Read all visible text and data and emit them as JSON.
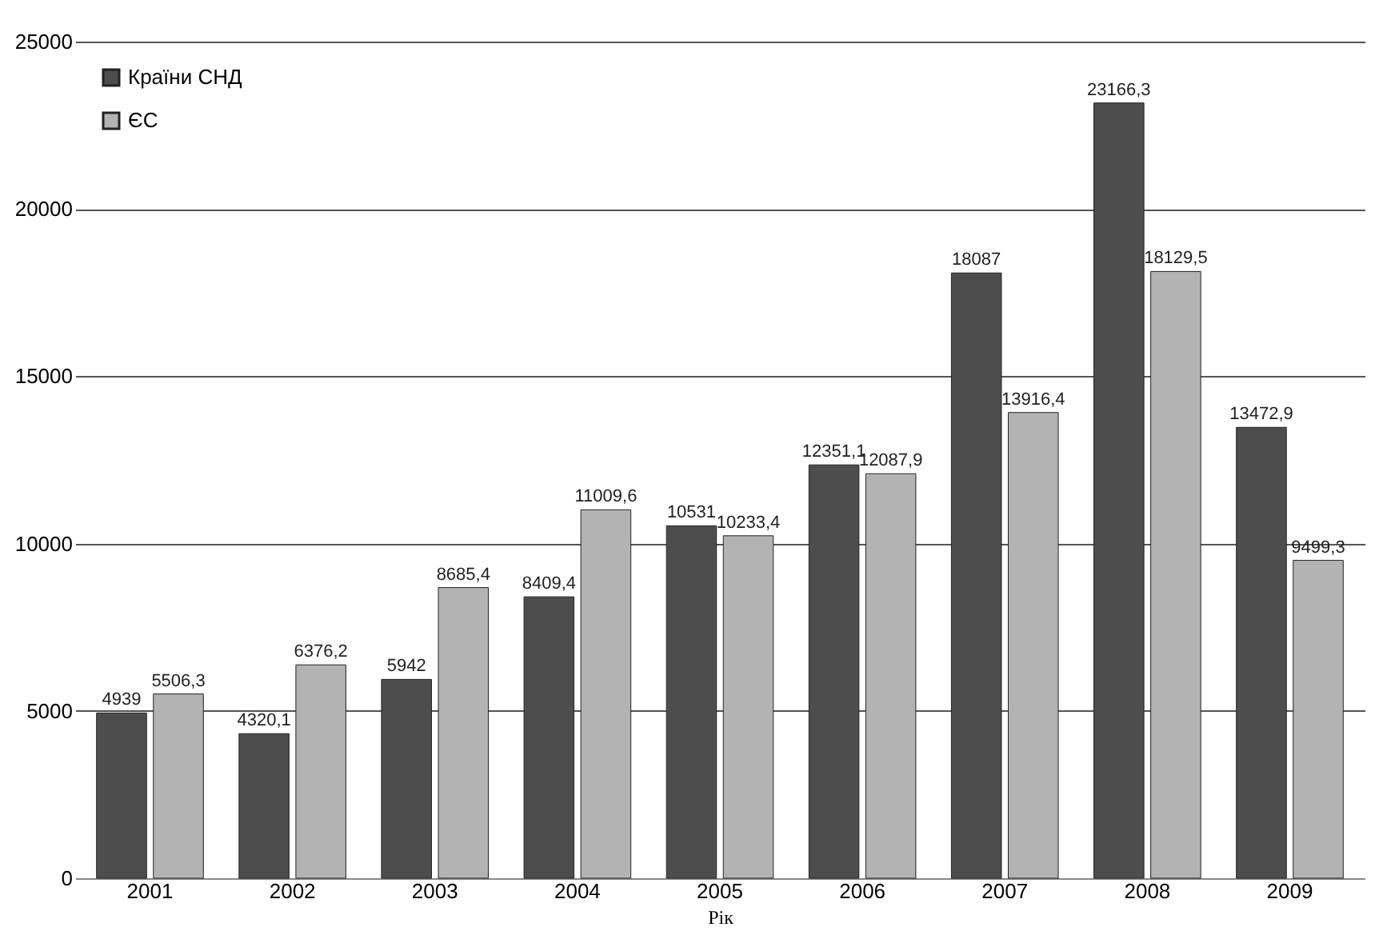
{
  "chart_data": {
    "type": "bar",
    "xlabel": "Рік",
    "categories": [
      "2001",
      "2002",
      "2003",
      "2004",
      "2005",
      "2006",
      "2007",
      "2008",
      "2009"
    ],
    "series": [
      {
        "name": "Країни СНД",
        "color": "#4d4d4d",
        "values": [
          4939,
          4320.1,
          5942,
          8409.4,
          10531,
          12351.1,
          18087,
          23166.3,
          13472.9
        ],
        "value_labels": [
          "4939",
          "4320,1",
          "5942",
          "8409,4",
          "10531",
          "12351,1",
          "18087",
          "23166,3",
          "13472,9"
        ]
      },
      {
        "name": "ЄС",
        "color": "#b3b3b3",
        "values": [
          5506.3,
          6376.2,
          8685.4,
          11009.6,
          10233.4,
          12087.9,
          13916.4,
          18129.5,
          9499.3
        ],
        "value_labels": [
          "5506,3",
          "6376,2",
          "8685,4",
          "11009,6",
          "10233,4",
          "12087,9",
          "13916,4",
          "18129,5",
          "9499,3"
        ]
      }
    ],
    "ylim": [
      0,
      25000
    ],
    "yticks": [
      0,
      5000,
      10000,
      15000,
      20000,
      25000
    ],
    "grid": "y",
    "legend": "top left"
  }
}
